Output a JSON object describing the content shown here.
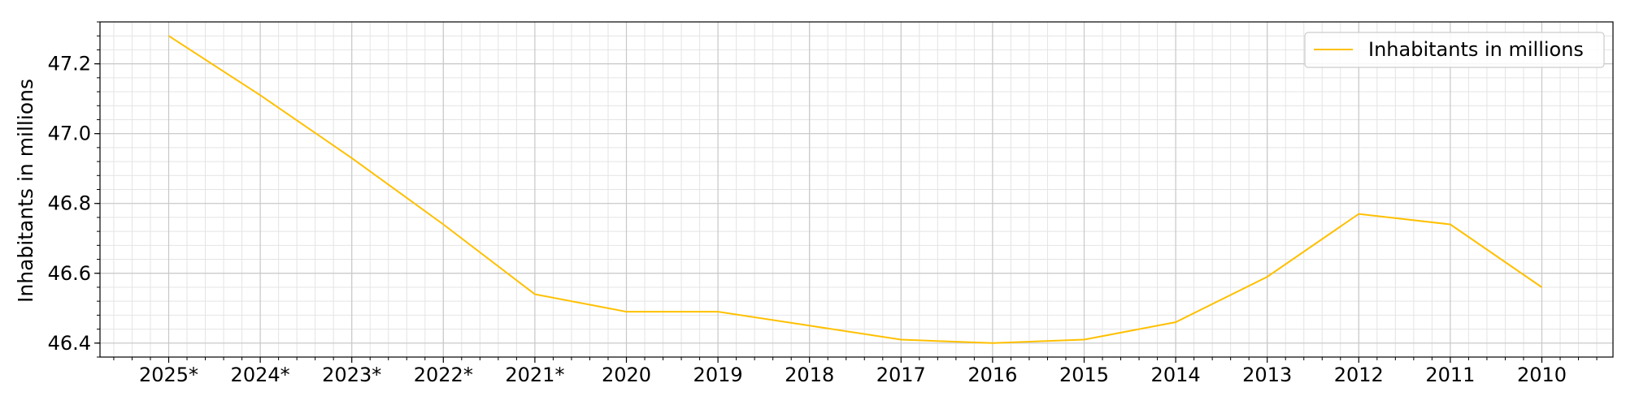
{
  "chart_data": {
    "type": "line",
    "categories": [
      "2025*",
      "2024*",
      "2023*",
      "2022*",
      "2021*",
      "2020",
      "2019",
      "2018",
      "2017",
      "2016",
      "2015",
      "2014",
      "2013",
      "2012",
      "2011",
      "2010"
    ],
    "series": [
      {
        "name": "Inhabitants in millions",
        "color": "#ffc000",
        "values": [
          47.28,
          47.11,
          46.93,
          46.74,
          46.54,
          46.49,
          46.49,
          46.45,
          46.41,
          46.4,
          46.41,
          46.46,
          46.59,
          46.77,
          46.74,
          46.56
        ]
      }
    ],
    "title": "",
    "xlabel": "",
    "ylabel": "Inhabitants in millions",
    "ylim": [
      46.36,
      47.32
    ],
    "yticks": [
      "46.4",
      "46.6",
      "46.8",
      "47.0",
      "47.2"
    ],
    "grid": true,
    "minor_grid": true,
    "legend_position": "top-right"
  }
}
